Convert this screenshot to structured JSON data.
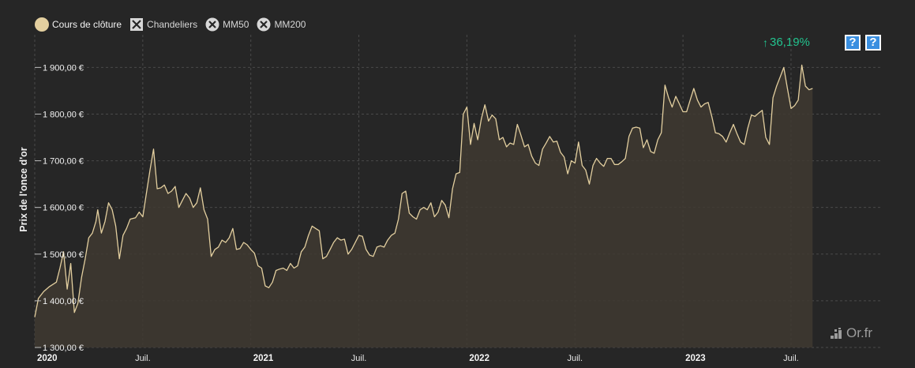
{
  "legend": {
    "items": [
      {
        "label": "Cours de clôture",
        "icon": "filled-circle-icon",
        "active": true
      },
      {
        "label": "Chandeliers",
        "icon": "x-square-icon",
        "active": false
      },
      {
        "label": "MM50",
        "icon": "x-circle-icon",
        "active": false
      },
      {
        "label": "MM200",
        "icon": "x-circle-icon",
        "active": false
      }
    ]
  },
  "performance": {
    "arrow": "↑",
    "value": "36,19%",
    "color": "#22c38e"
  },
  "help": {
    "label": "?"
  },
  "brand": {
    "name": "Or.fr"
  },
  "colors": {
    "background": "#262626",
    "line": "#e3cf9f",
    "area": "#3f3a31",
    "grid": "#4a4a4a"
  },
  "chart_data": {
    "type": "area",
    "ylabel": "Prix de l'once d'or",
    "xlabel": "",
    "ylim": [
      1300,
      1970
    ],
    "yticks": [
      1300,
      1400,
      1500,
      1600,
      1700,
      1800,
      1900
    ],
    "ytick_labels": [
      "1 300,00 €",
      "1 400,00 €",
      "1 500,00 €",
      "1 600,00 €",
      "1 700,00 €",
      "1 800,00 €",
      "1 900,00 €"
    ],
    "xlim": [
      0,
      47
    ],
    "xticks": [
      {
        "label": "2020",
        "month": 0,
        "bold": true
      },
      {
        "label": "Juil.",
        "month": 6,
        "bold": false
      },
      {
        "label": "2021",
        "month": 12,
        "bold": true
      },
      {
        "label": "Juil.",
        "month": 18,
        "bold": false
      },
      {
        "label": "2022",
        "month": 24,
        "bold": true
      },
      {
        "label": "Juil.",
        "month": 30,
        "bold": false
      },
      {
        "label": "2023",
        "month": 36,
        "bold": true
      },
      {
        "label": "Juil.",
        "month": 42,
        "bold": false
      }
    ],
    "x_unit": "months since Jan 2020",
    "grid": true,
    "series": [
      {
        "name": "Cours de clôture",
        "values": [
          [
            0.0,
            1365
          ],
          [
            0.2,
            1405
          ],
          [
            0.5,
            1420
          ],
          [
            0.8,
            1430
          ],
          [
            1.2,
            1440
          ],
          [
            1.4,
            1470
          ],
          [
            1.6,
            1505
          ],
          [
            1.8,
            1425
          ],
          [
            2.0,
            1480
          ],
          [
            2.2,
            1375
          ],
          [
            2.4,
            1395
          ],
          [
            2.6,
            1450
          ],
          [
            2.8,
            1490
          ],
          [
            3.0,
            1535
          ],
          [
            3.2,
            1545
          ],
          [
            3.4,
            1570
          ],
          [
            3.5,
            1595
          ],
          [
            3.7,
            1545
          ],
          [
            3.9,
            1570
          ],
          [
            4.1,
            1610
          ],
          [
            4.3,
            1595
          ],
          [
            4.5,
            1560
          ],
          [
            4.7,
            1490
          ],
          [
            4.9,
            1540
          ],
          [
            5.1,
            1555
          ],
          [
            5.3,
            1575
          ],
          [
            5.6,
            1578
          ],
          [
            5.8,
            1590
          ],
          [
            6.0,
            1580
          ],
          [
            6.2,
            1630
          ],
          [
            6.4,
            1680
          ],
          [
            6.6,
            1725
          ],
          [
            6.8,
            1640
          ],
          [
            7.0,
            1642
          ],
          [
            7.2,
            1648
          ],
          [
            7.4,
            1630
          ],
          [
            7.6,
            1635
          ],
          [
            7.8,
            1645
          ],
          [
            8.0,
            1600
          ],
          [
            8.2,
            1615
          ],
          [
            8.4,
            1630
          ],
          [
            8.6,
            1620
          ],
          [
            8.8,
            1600
          ],
          [
            9.0,
            1610
          ],
          [
            9.2,
            1642
          ],
          [
            9.4,
            1595
          ],
          [
            9.6,
            1575
          ],
          [
            9.8,
            1495
          ],
          [
            10.0,
            1510
          ],
          [
            10.2,
            1515
          ],
          [
            10.4,
            1530
          ],
          [
            10.6,
            1525
          ],
          [
            10.8,
            1535
          ],
          [
            11.0,
            1555
          ],
          [
            11.2,
            1510
          ],
          [
            11.4,
            1512
          ],
          [
            11.6,
            1525
          ],
          [
            11.8,
            1520
          ],
          [
            12.0,
            1510
          ],
          [
            12.2,
            1502
          ],
          [
            12.4,
            1475
          ],
          [
            12.6,
            1470
          ],
          [
            12.8,
            1432
          ],
          [
            13.0,
            1428
          ],
          [
            13.2,
            1440
          ],
          [
            13.4,
            1465
          ],
          [
            13.6,
            1468
          ],
          [
            13.8,
            1470
          ],
          [
            14.0,
            1465
          ],
          [
            14.2,
            1480
          ],
          [
            14.4,
            1470
          ],
          [
            14.6,
            1475
          ],
          [
            14.8,
            1505
          ],
          [
            15.0,
            1515
          ],
          [
            15.2,
            1540
          ],
          [
            15.4,
            1560
          ],
          [
            15.6,
            1555
          ],
          [
            15.8,
            1550
          ],
          [
            16.0,
            1490
          ],
          [
            16.2,
            1495
          ],
          [
            16.4,
            1510
          ],
          [
            16.6,
            1525
          ],
          [
            16.8,
            1535
          ],
          [
            17.0,
            1530
          ],
          [
            17.2,
            1532
          ],
          [
            17.4,
            1500
          ],
          [
            17.6,
            1510
          ],
          [
            17.8,
            1525
          ],
          [
            18.0,
            1540
          ],
          [
            18.2,
            1538
          ],
          [
            18.4,
            1510
          ],
          [
            18.6,
            1498
          ],
          [
            18.8,
            1495
          ],
          [
            19.0,
            1515
          ],
          [
            19.2,
            1518
          ],
          [
            19.4,
            1515
          ],
          [
            19.6,
            1530
          ],
          [
            19.8,
            1540
          ],
          [
            20.0,
            1545
          ],
          [
            20.2,
            1575
          ],
          [
            20.4,
            1630
          ],
          [
            20.6,
            1635
          ],
          [
            20.8,
            1588
          ],
          [
            21.0,
            1580
          ],
          [
            21.2,
            1575
          ],
          [
            21.4,
            1595
          ],
          [
            21.6,
            1600
          ],
          [
            21.8,
            1595
          ],
          [
            22.0,
            1610
          ],
          [
            22.2,
            1580
          ],
          [
            22.4,
            1590
          ],
          [
            22.6,
            1615
          ],
          [
            22.8,
            1605
          ],
          [
            23.0,
            1578
          ],
          [
            23.2,
            1640
          ],
          [
            23.4,
            1672
          ],
          [
            23.6,
            1675
          ],
          [
            23.8,
            1800
          ],
          [
            24.0,
            1815
          ],
          [
            24.2,
            1735
          ],
          [
            24.4,
            1780
          ],
          [
            24.6,
            1745
          ],
          [
            24.8,
            1790
          ],
          [
            25.0,
            1820
          ],
          [
            25.2,
            1785
          ],
          [
            25.4,
            1798
          ],
          [
            25.6,
            1790
          ],
          [
            25.8,
            1745
          ],
          [
            26.0,
            1750
          ],
          [
            26.2,
            1730
          ],
          [
            26.4,
            1738
          ],
          [
            26.6,
            1735
          ],
          [
            26.8,
            1778
          ],
          [
            27.0,
            1755
          ],
          [
            27.2,
            1730
          ],
          [
            27.4,
            1735
          ],
          [
            27.6,
            1710
          ],
          [
            27.8,
            1695
          ],
          [
            28.0,
            1690
          ],
          [
            28.2,
            1725
          ],
          [
            28.4,
            1738
          ],
          [
            28.6,
            1752
          ],
          [
            28.8,
            1740
          ],
          [
            29.0,
            1742
          ],
          [
            29.2,
            1718
          ],
          [
            29.4,
            1708
          ],
          [
            29.6,
            1672
          ],
          [
            29.8,
            1700
          ],
          [
            30.0,
            1695
          ],
          [
            30.2,
            1740
          ],
          [
            30.4,
            1690
          ],
          [
            30.6,
            1680
          ],
          [
            30.8,
            1650
          ],
          [
            31.0,
            1690
          ],
          [
            31.2,
            1705
          ],
          [
            31.4,
            1695
          ],
          [
            31.6,
            1688
          ],
          [
            31.8,
            1705
          ],
          [
            32.0,
            1705
          ],
          [
            32.2,
            1692
          ],
          [
            32.4,
            1692
          ],
          [
            32.6,
            1698
          ],
          [
            32.8,
            1705
          ],
          [
            33.0,
            1752
          ],
          [
            33.2,
            1770
          ],
          [
            33.4,
            1772
          ],
          [
            33.6,
            1770
          ],
          [
            33.8,
            1728
          ],
          [
            34.0,
            1745
          ],
          [
            34.2,
            1720
          ],
          [
            34.4,
            1716
          ],
          [
            34.6,
            1745
          ],
          [
            34.8,
            1760
          ],
          [
            35.0,
            1862
          ],
          [
            35.2,
            1835
          ],
          [
            35.4,
            1815
          ],
          [
            35.6,
            1838
          ],
          [
            35.8,
            1822
          ],
          [
            36.0,
            1805
          ],
          [
            36.2,
            1805
          ],
          [
            36.4,
            1830
          ],
          [
            36.6,
            1855
          ],
          [
            36.8,
            1830
          ],
          [
            37.0,
            1815
          ],
          [
            37.2,
            1822
          ],
          [
            37.4,
            1825
          ],
          [
            37.6,
            1795
          ],
          [
            37.8,
            1760
          ],
          [
            38.0,
            1758
          ],
          [
            38.2,
            1752
          ],
          [
            38.4,
            1740
          ],
          [
            38.6,
            1760
          ],
          [
            38.8,
            1778
          ],
          [
            39.0,
            1758
          ],
          [
            39.2,
            1740
          ],
          [
            39.4,
            1735
          ],
          [
            39.6,
            1770
          ],
          [
            39.8,
            1798
          ],
          [
            40.0,
            1795
          ],
          [
            40.2,
            1802
          ],
          [
            40.4,
            1808
          ],
          [
            40.6,
            1750
          ],
          [
            40.8,
            1735
          ],
          [
            41.0,
            1835
          ],
          [
            41.2,
            1860
          ],
          [
            41.4,
            1880
          ],
          [
            41.6,
            1900
          ],
          [
            41.8,
            1855
          ],
          [
            42.0,
            1812
          ],
          [
            42.2,
            1818
          ],
          [
            42.4,
            1830
          ],
          [
            42.6,
            1905
          ],
          [
            42.8,
            1860
          ],
          [
            43.0,
            1852
          ],
          [
            43.2,
            1855
          ]
        ]
      }
    ]
  }
}
